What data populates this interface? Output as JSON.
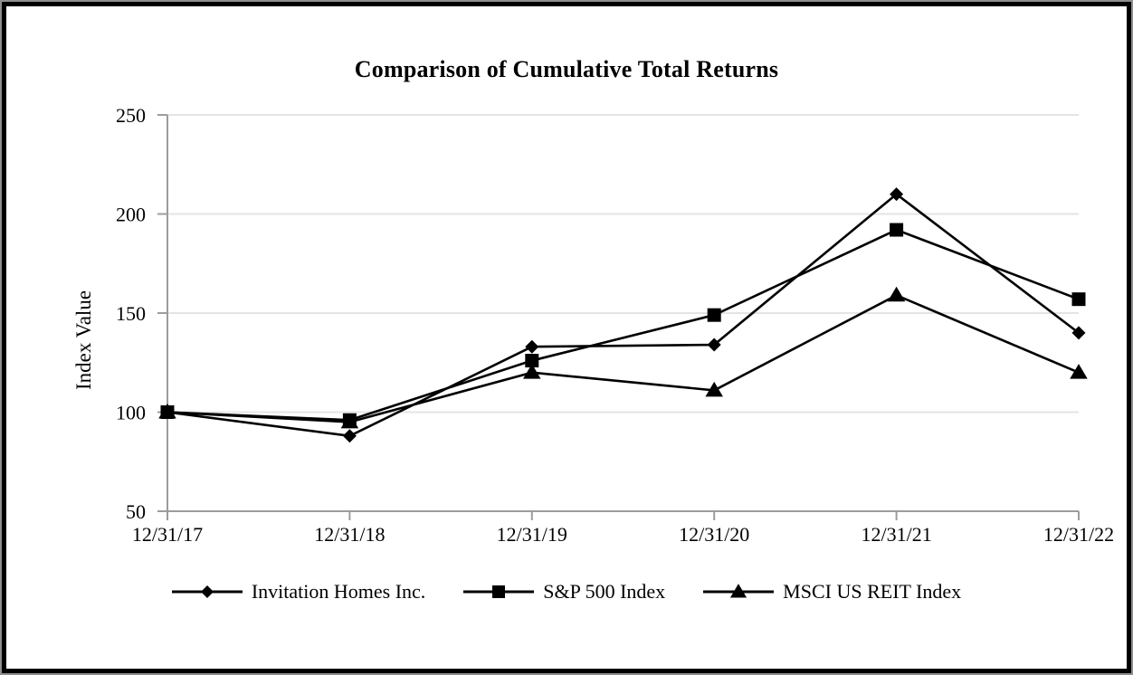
{
  "chart_data": {
    "type": "line",
    "title": "Comparison of Cumulative Total Returns",
    "xlabel": "",
    "ylabel": "Index Value",
    "categories": [
      "12/31/17",
      "12/31/18",
      "12/31/19",
      "12/31/20",
      "12/31/21",
      "12/31/22"
    ],
    "series": [
      {
        "name": "Invitation Homes Inc.",
        "marker": "diamond",
        "values": [
          100,
          88,
          133,
          134,
          210,
          140
        ]
      },
      {
        "name": "S&P 500 Index",
        "marker": "square",
        "values": [
          100,
          96,
          126,
          149,
          192,
          157
        ]
      },
      {
        "name": "MSCI US REIT Index",
        "marker": "triangle",
        "values": [
          100,
          95,
          120,
          111,
          159,
          120
        ]
      }
    ],
    "y_ticks": [
      50,
      100,
      150,
      200,
      250
    ],
    "ylim": [
      50,
      250
    ],
    "grid": true,
    "legend_position": "bottom",
    "colors": {
      "series": "#000000",
      "axis": "#9c9c9c",
      "gridline": "#e4e4e4",
      "text": "#000000"
    }
  }
}
